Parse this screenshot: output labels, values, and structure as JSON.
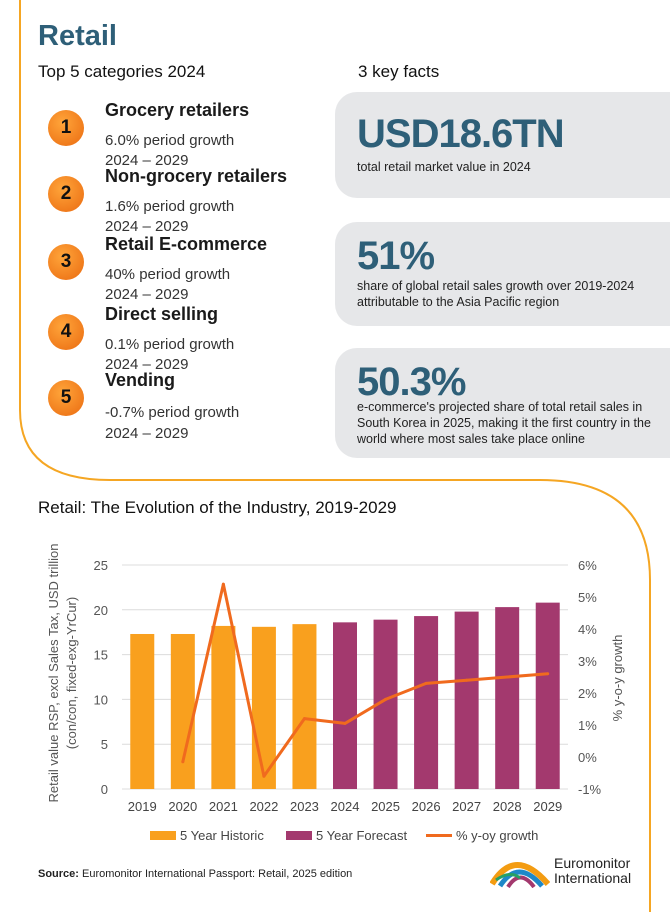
{
  "title": "Retail",
  "categories_heading": "Top 5 categories 2024",
  "facts_heading": "3 key facts",
  "categories": [
    {
      "rank": "1",
      "name": "Grocery retailers",
      "growth": "6.0% period growth",
      "period": "2024 – 2029"
    },
    {
      "rank": "2",
      "name": "Non-grocery retailers",
      "growth": "1.6% period growth",
      "period": "2024 – 2029"
    },
    {
      "rank": "3",
      "name": "Retail E-commerce",
      "growth": "40% period growth",
      "period": "2024 – 2029"
    },
    {
      "rank": "4",
      "name": "Direct selling",
      "growth": "0.1% period growth",
      "period": "2024 – 2029"
    },
    {
      "rank": "5",
      "name": "Vending",
      "growth": " -0.7% period growth",
      "period": "2024 – 2029"
    }
  ],
  "facts": [
    {
      "value": "USD18.6TN",
      "desc": "total retail market value in 2024"
    },
    {
      "value": "51%",
      "desc": "share of global retail sales growth over 2019-2024 attributable to the Asia Pacific region"
    },
    {
      "value": "50.3%",
      "desc": "e-commerce's projected share of total retail sales in South Korea in 2025, making it the first country in the world where most sales take place online"
    }
  ],
  "colors": {
    "historic": "#f9a01e",
    "forecast": "#a3396e",
    "growth": "#f06a1e",
    "accent": "#2e5f78",
    "border": "#f5a623"
  },
  "chart_data": {
    "type": "bar",
    "title": "Retail: The Evolution of the Industry, 2019-2029",
    "categories": [
      "2019",
      "2020",
      "2021",
      "2022",
      "2023",
      "2024",
      "2025",
      "2026",
      "2027",
      "2028",
      "2029"
    ],
    "series": [
      {
        "name": "5 Year Historic",
        "type": "bar",
        "axis": "left",
        "values": [
          17.3,
          17.3,
          18.2,
          18.1,
          18.4,
          null,
          null,
          null,
          null,
          null,
          null
        ]
      },
      {
        "name": "5 Year Forecast",
        "type": "bar",
        "axis": "left",
        "values": [
          null,
          null,
          null,
          null,
          null,
          18.6,
          18.9,
          19.3,
          19.8,
          20.3,
          20.8
        ]
      },
      {
        "name": "% y-oy growth",
        "type": "line",
        "axis": "right",
        "values": [
          null,
          -0.15,
          5.4,
          -0.6,
          1.2,
          1.05,
          1.8,
          2.3,
          2.4,
          2.5,
          2.6
        ]
      }
    ],
    "ylabel": "Retail value RSP, excl Sales Tax, USD trillion (con/con, fixed-exg-YrCur)",
    "ylabel_line1": "Retail value RSP, excl Sales Tax, USD trillion",
    "ylabel_line2": "(con/con, fixed-exg-YrCur)",
    "y2label": "% y-o-y growth",
    "ylim": [
      0,
      25
    ],
    "y2lim": [
      -1,
      6
    ],
    "yticks": [
      "0",
      "5",
      "10",
      "15",
      "20",
      "25"
    ],
    "y2ticks": [
      "-1%",
      "0%",
      "1%",
      "2%",
      "3%",
      "4%",
      "5%",
      "6%"
    ],
    "grid": true,
    "legend_position": "bottom"
  },
  "source_label": "Source:",
  "source_text": "Euromonitor International Passport: Retail, 2025 edition",
  "logo": {
    "line1": "Euromonitor",
    "line2": "International"
  }
}
